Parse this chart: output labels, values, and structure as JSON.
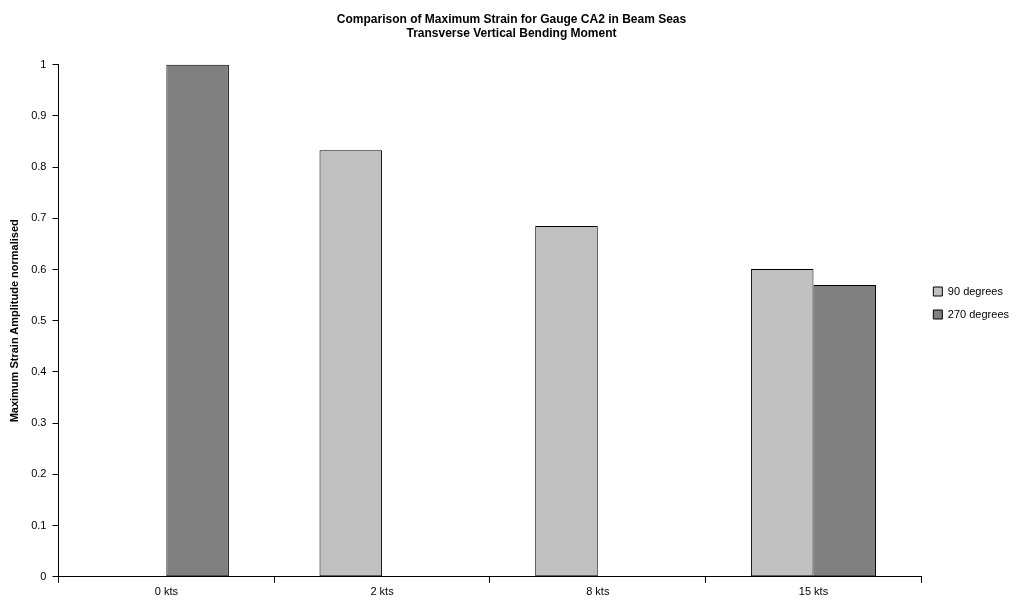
{
  "chart_data": {
    "type": "bar",
    "title": "Comparison of Maximum Strain for Gauge CA2 in Beam Seas",
    "subtitle": "Transverse Vertical Bending Moment",
    "ylabel": "Maximum Strain Amplitude normalised",
    "categories": [
      "0 kts",
      "2 kts",
      "8 kts",
      "15 kts"
    ],
    "series": [
      {
        "name": "90 degrees",
        "color": "#c0c0c0",
        "values": [
          null,
          0.833,
          0.685,
          0.601
        ]
      },
      {
        "name": "270 degrees",
        "color": "#808080",
        "values": [
          1.0,
          null,
          null,
          0.57
        ]
      }
    ],
    "ylim": [
      0,
      1
    ],
    "yticks": [
      0,
      0.1,
      0.2,
      0.3,
      0.4,
      0.5,
      0.6,
      0.7,
      0.8,
      0.9,
      1
    ],
    "grid": false,
    "legend": "right"
  }
}
